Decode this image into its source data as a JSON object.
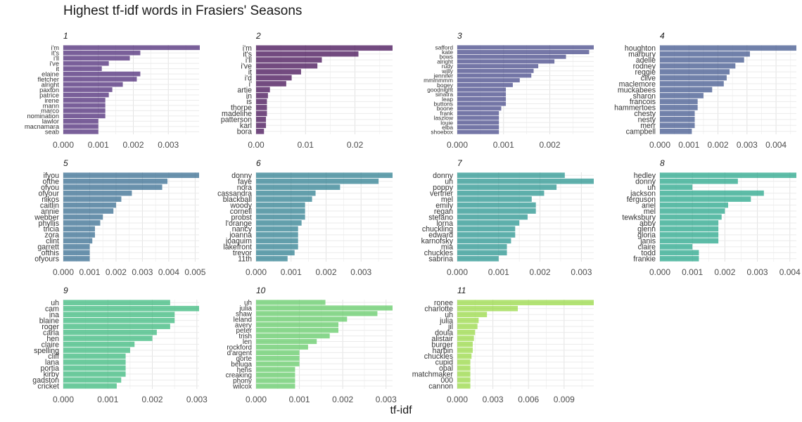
{
  "chart_data": {
    "type": "bar",
    "orientation": "horizontal",
    "title": "Highest tf-idf words in Frasiers' Seasons",
    "xlabel": "tf-idf",
    "ylabel": "",
    "grid": true,
    "legend": "none",
    "facets": [
      {
        "label": "1",
        "color": "#482475",
        "xticks": [
          0,
          0.001,
          0.002,
          0.003
        ],
        "xtick_labels": [
          "0.000",
          "0.001",
          "0.002",
          "0.003"
        ],
        "xlim": [
          0,
          0.00388
        ],
        "categories": [
          "i'm",
          "it's",
          "i'll",
          "i've",
          "it",
          "elaine",
          "fletcher",
          "alright",
          "paxton",
          "patrice",
          "irene",
          "mann",
          "marco",
          "nomination",
          "lawlor",
          "macnamara",
          "seab"
        ],
        "values": [
          0.0039,
          0.0022,
          0.0019,
          0.0013,
          0.0011,
          0.0022,
          0.0021,
          0.0017,
          0.0014,
          0.0013,
          0.0012,
          0.0012,
          0.0012,
          0.0012,
          0.001,
          0.001,
          0.001
        ]
      },
      {
        "label": "2",
        "color": "#3e0751",
        "xticks": [
          0,
          0.01,
          0.02
        ],
        "xtick_labels": [
          "0.00",
          "0.01",
          "0.02"
        ],
        "xlim": [
          0,
          0.0276
        ],
        "categories": [
          "i'm",
          "it's",
          "i'll",
          "i've",
          "it",
          "i'd",
          "i'",
          "artie",
          "in",
          "is",
          "thorpe",
          "madeline",
          "patterson",
          "karl",
          "bora"
        ],
        "values": [
          0.0276,
          0.0207,
          0.0133,
          0.0124,
          0.0091,
          0.0072,
          0.0061,
          0.0028,
          0.0024,
          0.0022,
          0.0022,
          0.0022,
          0.002,
          0.002,
          0.0016
        ]
      },
      {
        "label": "3",
        "color": "#414487",
        "xticks": [
          0,
          0.001,
          0.002
        ],
        "xtick_labels": [
          "0.000",
          "0.001",
          "0.002"
        ],
        "xlim": [
          0,
          0.00295
        ],
        "categories": [
          "safford",
          "kate",
          "bows",
          "alright",
          "rudy",
          "willy",
          "jennifer",
          "mmmmmm",
          "bogey",
          "goodnight",
          "sinatra",
          "leap",
          "buttons",
          "boone",
          "frank",
          "laszlow",
          "louie",
          "elba",
          "shoebox"
        ],
        "values": [
          0.00295,
          0.00285,
          0.00235,
          0.0021,
          0.00175,
          0.00165,
          0.0016,
          0.00135,
          0.0012,
          0.00105,
          0.00105,
          0.00105,
          0.00105,
          0.00095,
          0.0009,
          0.0009,
          0.0009,
          0.0009,
          0.0009
        ]
      },
      {
        "label": "4",
        "color": "#3b528b",
        "xticks": [
          0,
          0.001,
          0.002,
          0.003,
          0.004
        ],
        "xtick_labels": [
          "0.000",
          "0.001",
          "0.002",
          "0.003",
          "0.004"
        ],
        "xlim": [
          0,
          0.0047
        ],
        "categories": [
          "houghton",
          "marbury",
          "adelle",
          "rodney",
          "reggie",
          "clive",
          "maclemore",
          "muckabees",
          "sharon",
          "francois",
          "hammertoes",
          "chesty",
          "nesty",
          "merr",
          "campbell"
        ],
        "values": [
          0.0047,
          0.0031,
          0.0029,
          0.0026,
          0.0024,
          0.0023,
          0.0022,
          0.0018,
          0.0015,
          0.0013,
          0.0013,
          0.0012,
          0.0012,
          0.0012,
          0.0011
        ]
      },
      {
        "label": "5",
        "color": "#31688e",
        "xticks": [
          0,
          0.001,
          0.002,
          0.003,
          0.004,
          0.005
        ],
        "xtick_labels": [
          "0.000",
          "0.001",
          "0.002",
          "0.003",
          "0.004",
          "0.005"
        ],
        "xlim": [
          0,
          0.00515
        ],
        "categories": [
          "ifyou",
          "ofthe",
          "ofyou",
          "ofyour",
          "nikos",
          "caitlin",
          "annie",
          "webber",
          "phyllis",
          "tricia",
          "zora",
          "clint",
          "garrett",
          "ofthis",
          "ofyours"
        ],
        "values": [
          0.00515,
          0.00395,
          0.00375,
          0.0026,
          0.0022,
          0.002,
          0.0019,
          0.0015,
          0.0014,
          0.0012,
          0.0012,
          0.0011,
          0.001,
          0.001,
          0.001
        ]
      },
      {
        "label": "6",
        "color": "#287c8e",
        "xticks": [
          0,
          0.001,
          0.002,
          0.003
        ],
        "xtick_labels": [
          "0.000",
          "0.001",
          "0.002",
          "0.003"
        ],
        "xlim": [
          0,
          0.0039
        ],
        "categories": [
          "donny",
          "faye",
          "nora",
          "cassandra",
          "blackball",
          "woody",
          "cornell",
          "probst",
          "l'orange",
          "nancy",
          "joanna",
          "joaquim",
          "lakefront",
          "trevor",
          "11th"
        ],
        "values": [
          0.0039,
          0.0035,
          0.0024,
          0.0017,
          0.0016,
          0.0014,
          0.0014,
          0.0014,
          0.0013,
          0.0012,
          0.0012,
          0.0012,
          0.0012,
          0.0011,
          0.0009
        ]
      },
      {
        "label": "7",
        "color": "#21918c",
        "xticks": [
          0,
          0.001,
          0.002,
          0.003
        ],
        "xtick_labels": [
          "0.000",
          "0.001",
          "0.002",
          "0.003"
        ],
        "xlim": [
          0,
          0.0033
        ],
        "categories": [
          "donny",
          "uh",
          "poppy",
          "vertner",
          "mel",
          "emily",
          "regan",
          "stefano",
          "lorna",
          "chuckling",
          "edward",
          "karnofsky",
          "mia",
          "chuckles",
          "sabrina"
        ],
        "values": [
          0.0026,
          0.0033,
          0.0024,
          0.0021,
          0.0018,
          0.0019,
          0.0019,
          0.0017,
          0.0015,
          0.0014,
          0.0014,
          0.0013,
          0.0012,
          0.0012,
          0.001
        ]
      },
      {
        "label": "8",
        "color": "#20a386",
        "xticks": [
          0,
          0.001,
          0.002,
          0.003,
          0.004
        ],
        "xtick_labels": [
          "0.000",
          "0.001",
          "0.002",
          "0.003",
          "0.004"
        ],
        "xlim": [
          0,
          0.0042
        ],
        "categories": [
          "hedley",
          "donny",
          "uh",
          "jackson",
          "ferguson",
          "ariel",
          "mel",
          "tewksbury",
          "abby",
          "glenn",
          "gloria",
          "janis",
          "claire",
          "todd",
          "frankie"
        ],
        "values": [
          0.0042,
          0.0024,
          0.001,
          0.0032,
          0.0028,
          0.0021,
          0.002,
          0.0019,
          0.0018,
          0.0018,
          0.0018,
          0.0018,
          0.001,
          0.0012,
          0.0012
        ]
      },
      {
        "label": "9",
        "color": "#35b779",
        "xticks": [
          0,
          0.001,
          0.002,
          0.003
        ],
        "xtick_labels": [
          "0.000",
          "0.001",
          "0.002",
          "0.003"
        ],
        "xlim": [
          0,
          0.00305
        ],
        "categories": [
          "uh",
          "cam",
          "ina",
          "blaine",
          "roger",
          "carla",
          "hen",
          "claire",
          "spelling",
          "cliff",
          "lana",
          "portia",
          "kirby",
          "gadston",
          "cricket"
        ],
        "values": [
          0.0024,
          0.00305,
          0.0025,
          0.0025,
          0.0024,
          0.0021,
          0.002,
          0.0016,
          0.0015,
          0.0014,
          0.0014,
          0.0014,
          0.0014,
          0.0013,
          0.0012
        ]
      },
      {
        "label": "10",
        "color": "#5ec962",
        "xticks": [
          0,
          0.001,
          0.002,
          0.003
        ],
        "xtick_labels": [
          "0.000",
          "0.001",
          "0.002",
          "0.003"
        ],
        "xlim": [
          0,
          0.00315
        ],
        "categories": [
          "uh",
          "julia",
          "shaw",
          "leland",
          "avery",
          "peter",
          "trish",
          "len",
          "rockford",
          "d'argent",
          "gorte",
          "beluga",
          "hens",
          "creaking",
          "phony",
          "wilcox"
        ],
        "values": [
          0.0016,
          0.00315,
          0.0028,
          0.0021,
          0.0019,
          0.0019,
          0.0017,
          0.0014,
          0.0012,
          0.001,
          0.001,
          0.001,
          0.0009,
          0.0009,
          0.0009,
          0.0009
        ]
      },
      {
        "label": "11",
        "color": "#95d840",
        "xticks": [
          0,
          0.003,
          0.006,
          0.009
        ],
        "xtick_labels": [
          "0.000",
          "0.003",
          "0.006",
          "0.009"
        ],
        "xlim": [
          0,
          0.0115
        ],
        "categories": [
          "ronee",
          "charlotte",
          "uh",
          "julia",
          "jil",
          "doula",
          "alistair",
          "burger",
          "harbin",
          "chuckles",
          "cupid",
          "opal",
          "matchmaker",
          "000",
          "cannon"
        ],
        "values": [
          0.0115,
          0.0051,
          0.0025,
          0.0018,
          0.0017,
          0.0015,
          0.0014,
          0.0013,
          0.0013,
          0.0012,
          0.0011,
          0.0011,
          0.0011,
          0.0011,
          0.0011
        ]
      }
    ]
  }
}
